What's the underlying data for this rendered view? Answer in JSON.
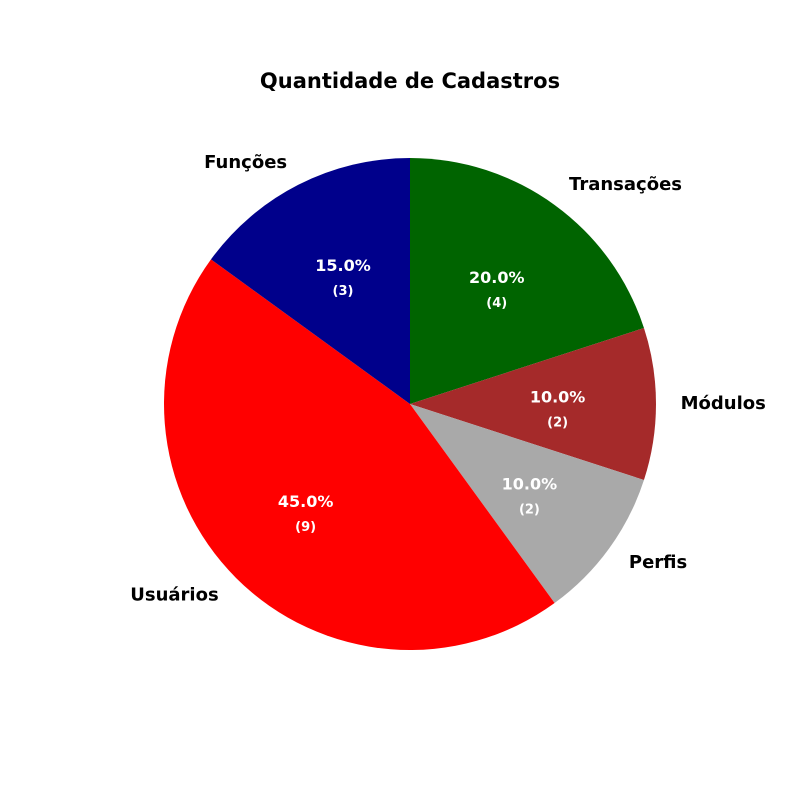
{
  "chart_data": {
    "type": "pie",
    "title": "Quantidade de Cadastros",
    "start_angle_deg": 90,
    "direction": "clockwise",
    "slices": [
      {
        "label": "Transações",
        "value": 4,
        "percent_text": "20.0%",
        "count_text": "(4)",
        "color": "#006400"
      },
      {
        "label": "Módulos",
        "value": 2,
        "percent_text": "10.0%",
        "count_text": "(2)",
        "color": "#A52A2A"
      },
      {
        "label": "Perfis",
        "value": 2,
        "percent_text": "10.0%",
        "count_text": "(2)",
        "color": "#A9A9A9"
      },
      {
        "label": "Usuários",
        "value": 9,
        "percent_text": "45.0%",
        "count_text": "(9)",
        "color": "#FF0000"
      },
      {
        "label": "Funções",
        "value": 3,
        "percent_text": "15.0%",
        "count_text": "(3)",
        "color": "#00008B"
      }
    ],
    "total": 20
  }
}
